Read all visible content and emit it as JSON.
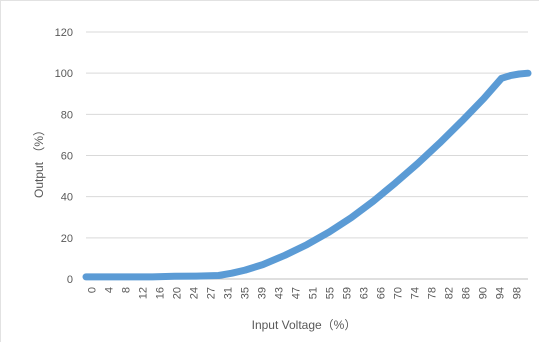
{
  "chart_data": {
    "type": "line",
    "title": "",
    "xlabel": "Input Voltage（%）",
    "ylabel": "Output （%）",
    "ylim": [
      0,
      120
    ],
    "yticks": [
      0,
      20,
      40,
      60,
      80,
      100,
      120
    ],
    "xlim": [
      0,
      100
    ],
    "xticks": [
      "0",
      "4",
      "8",
      "12",
      "16",
      "20",
      "24",
      "27",
      "31",
      "35",
      "39",
      "43",
      "47",
      "51",
      "55",
      "59",
      "63",
      "66",
      "70",
      "74",
      "78",
      "82",
      "86",
      "90",
      "94",
      "98"
    ],
    "grid": "horizontal",
    "legend": "none",
    "series_color": "#5b9bd5",
    "series": [
      {
        "x": [
          0,
          5,
          10,
          15,
          20,
          25,
          30,
          33,
          36,
          40,
          45,
          50,
          55,
          60,
          65,
          70,
          75,
          80,
          85,
          90,
          94,
          96,
          98,
          100
        ],
        "y": [
          1.0,
          1.0,
          1.0,
          1.0,
          1.3,
          1.4,
          1.7,
          2.8,
          4.3,
          7.0,
          11.5,
          16.7,
          22.8,
          29.8,
          37.8,
          46.7,
          56.0,
          66.0,
          76.6,
          87.7,
          97.5,
          98.8,
          99.6,
          100.0
        ]
      }
    ]
  }
}
